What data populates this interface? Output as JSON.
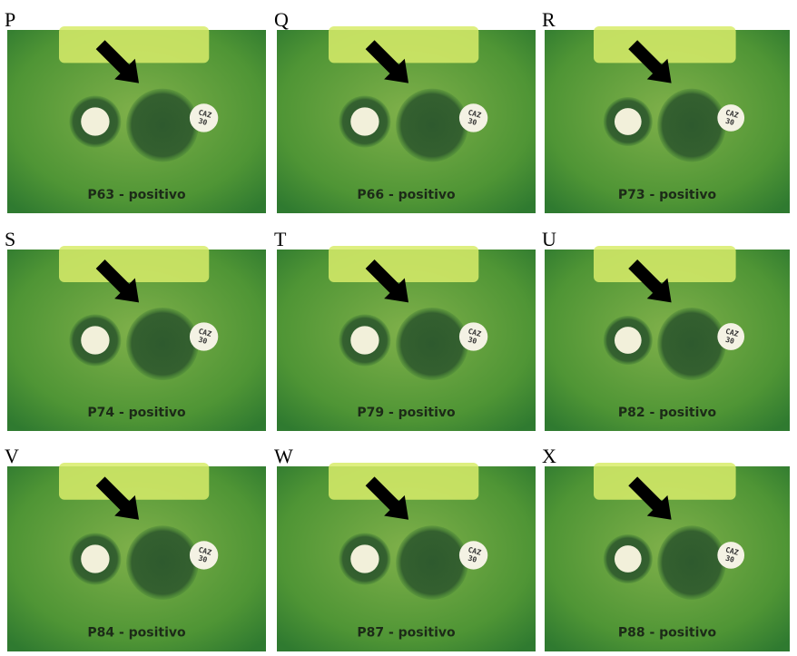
{
  "panels": [
    {
      "letter": "P",
      "caption": "P63 - positivo",
      "disk_label": [
        "CAZ",
        "30"
      ]
    },
    {
      "letter": "Q",
      "caption": "P66 - positivo",
      "disk_label": [
        "CAZ",
        "30"
      ]
    },
    {
      "letter": "R",
      "caption": "P73 - positivo",
      "disk_label": [
        "CAZ",
        "30"
      ]
    },
    {
      "letter": "S",
      "caption": "P74 - positivo",
      "disk_label": [
        "CAZ",
        "30"
      ]
    },
    {
      "letter": "T",
      "caption": "P79 - positivo",
      "disk_label": [
        "CAZ",
        "30"
      ]
    },
    {
      "letter": "U",
      "caption": "P82 - positivo",
      "disk_label": [
        "CAZ",
        "30"
      ]
    },
    {
      "letter": "V",
      "caption": "P84 - positivo",
      "disk_label": [
        "CAZ",
        "30"
      ]
    },
    {
      "letter": "W",
      "caption": "P87 - positivo",
      "disk_label": [
        "CAZ",
        "30"
      ]
    },
    {
      "letter": "X",
      "caption": "P88 - positivo",
      "disk_label": [
        "CAZ",
        "30"
      ]
    }
  ]
}
